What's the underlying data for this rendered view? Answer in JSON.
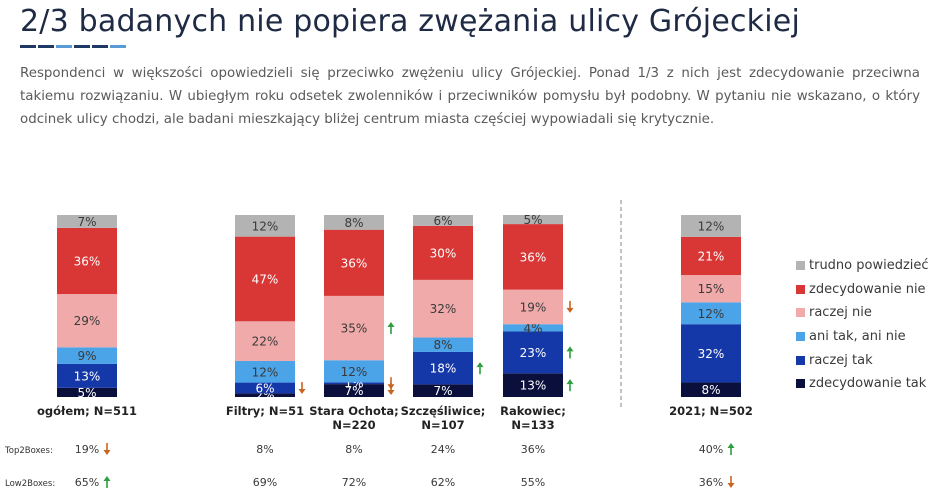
{
  "header": {
    "title": "2/3 badanych nie popiera zwężania ulicy Grójeckiej",
    "description": "Respondenci w większości opowiedzieli się przeciwko zwężeniu ulicy Grójeckiej. Ponad 1/3 z nich jest zdecydowanie przeciwna takiemu rozwiązaniu. W ubiegłym roku odsetek zwolenników i przeciwników pomysłu był podobny. W pytaniu nie wskazano, o który odcinek ulicy chodzi, ale badani mieszkający bliżej centrum miasta częściej wypowiadali się krytycznie.",
    "accent_colors": [
      "#1f3864",
      "#1f3864",
      "#5b9bd5",
      "#1f3864",
      "#1f3864",
      "#5b9bd5"
    ]
  },
  "chart_data": {
    "type": "bar",
    "stacked": true,
    "normalized": true,
    "categories": [
      "ogółem; N=511",
      "Filtry; N=51",
      "Stara Ochota; N=220",
      "Szczęśliwice; N=107",
      "Rakowiec; N=133",
      "2021; N=502"
    ],
    "series": [
      {
        "name": "zdecydowanie tak",
        "color": "#0a0f3c",
        "values": [
          5,
          2,
          7,
          7,
          13,
          8
        ],
        "labels": [
          "5%",
          "2%",
          "7%",
          "7%",
          "13%",
          "8%"
        ]
      },
      {
        "name": "raczej tak",
        "color": "#1538a8",
        "values": [
          13,
          6,
          1,
          18,
          23,
          32
        ],
        "labels": [
          "13%",
          "6%",
          "1%",
          "18%",
          "23%",
          "32%"
        ]
      },
      {
        "name": "ani tak, ani nie",
        "color": "#4ba3e8",
        "values": [
          9,
          12,
          12,
          8,
          4,
          12
        ],
        "labels": [
          "9%",
          "12%",
          "12%",
          "8%",
          "4%",
          "12%"
        ]
      },
      {
        "name": "raczej nie",
        "color": "#f0aaaa",
        "values": [
          29,
          22,
          35,
          32,
          19,
          15
        ],
        "labels": [
          "29%",
          "22%",
          "35%",
          "32%",
          "19%",
          "15%"
        ]
      },
      {
        "name": "zdecydowanie nie",
        "color": "#d93636",
        "values": [
          36,
          47,
          36,
          30,
          36,
          21
        ],
        "labels": [
          "36%",
          "47%",
          "36%",
          "30%",
          "36%",
          "21%"
        ]
      },
      {
        "name": "trudno powiedzieć",
        "color": "#b3b3b3",
        "values": [
          7,
          12,
          8,
          6,
          5,
          12
        ],
        "labels": [
          "7%",
          "12%",
          "8%",
          "6%",
          "5%",
          "12%"
        ]
      }
    ],
    "segment_arrows": [
      {
        "category": 1,
        "series": 1,
        "direction": "down"
      },
      {
        "category": 2,
        "series": 0,
        "direction": "down"
      },
      {
        "category": 2,
        "series": 1,
        "direction": "down"
      },
      {
        "category": 2,
        "series": 3,
        "direction": "up"
      },
      {
        "category": 3,
        "series": 1,
        "direction": "up"
      },
      {
        "category": 4,
        "series": 0,
        "direction": "up"
      },
      {
        "category": 4,
        "series": 1,
        "direction": "up"
      },
      {
        "category": 4,
        "series": 3,
        "direction": "down"
      }
    ],
    "summary_rows": [
      {
        "label": "Top2Boxes:",
        "values": [
          "19%",
          "8%",
          "8%",
          "24%",
          "36%",
          "40%"
        ],
        "arrows": [
          "down",
          null,
          null,
          null,
          null,
          "up"
        ]
      },
      {
        "label": "Low2Boxes:",
        "values": [
          "65%",
          "69%",
          "72%",
          "62%",
          "55%",
          "36%"
        ],
        "arrows": [
          "up",
          null,
          null,
          null,
          null,
          "down"
        ]
      }
    ],
    "legend": [
      "trudno powiedzieć",
      "zdecydowanie nie",
      "raczej nie",
      "ani tak, ani nie",
      "raczej tak",
      "zdecydowanie tak"
    ],
    "legend_position": "right",
    "arrow_colors": {
      "up": "#2e9e3e",
      "down": "#c8641e"
    }
  }
}
